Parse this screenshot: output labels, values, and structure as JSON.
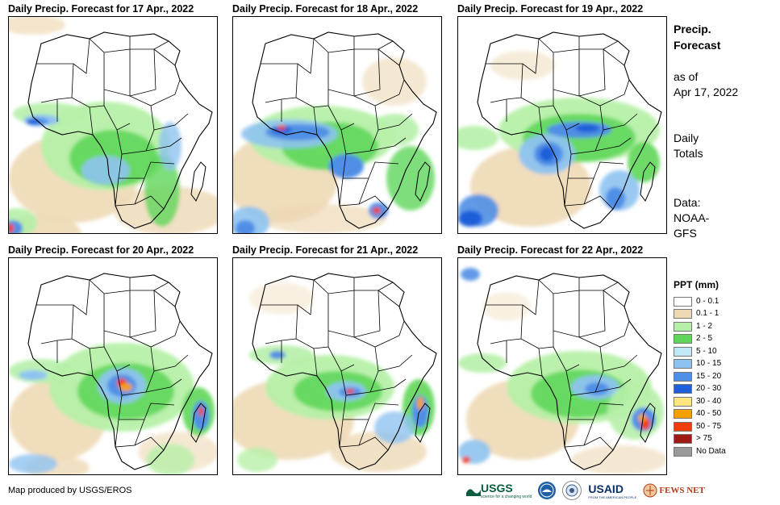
{
  "panels": [
    {
      "title": "Daily Precip. Forecast for 17 Apr., 2022"
    },
    {
      "title": "Daily Precip. Forecast for 18 Apr., 2022"
    },
    {
      "title": "Daily Precip. Forecast for 19 Apr., 2022"
    },
    {
      "title": "Daily Precip. Forecast for 20 Apr., 2022"
    },
    {
      "title": "Daily Precip. Forecast for 21 Apr., 2022"
    },
    {
      "title": "Daily Precip. Forecast for 22 Apr., 2022"
    }
  ],
  "side": {
    "title_line1": "Precip.",
    "title_line2": "Forecast",
    "asof_line1": "as of",
    "asof_line2": "Apr 17, 2022",
    "totals_line1": "Daily",
    "totals_line2": "Totals",
    "data_line1": "Data:",
    "data_line2": "NOAA-",
    "data_line3": "GFS"
  },
  "legend": {
    "title": "PPT (mm)",
    "items": [
      {
        "label": "0 - 0.1",
        "color": "#ffffff"
      },
      {
        "label": "0.1 - 1",
        "color": "#eed9b5"
      },
      {
        "label": "1 - 2",
        "color": "#b6f0a8"
      },
      {
        "label": "2 - 5",
        "color": "#5fd65a"
      },
      {
        "label": "5 - 10",
        "color": "#bfeaf5"
      },
      {
        "label": "10 - 15",
        "color": "#8ec3f0"
      },
      {
        "label": "15 - 20",
        "color": "#4f8fe6"
      },
      {
        "label": "20 - 30",
        "color": "#1e5ed8"
      },
      {
        "label": "30 - 40",
        "color": "#ffe680"
      },
      {
        "label": "40 - 50",
        "color": "#f5a000"
      },
      {
        "label": "50 - 75",
        "color": "#f03c0a"
      },
      {
        "label": "> 75",
        "color": "#9e1a12"
      },
      {
        "label": "No Data",
        "color": "#9a9a9a"
      }
    ]
  },
  "footer": {
    "credit": "Map produced by USGS/EROS",
    "logo_usgs": "USGS",
    "logo_usgs_tag": "science for a changing world",
    "logo_usaid": "USAID",
    "logo_usaid_sub": "FROM THE AMERICAN PEOPLE",
    "logo_fews": "FEWS NET"
  }
}
